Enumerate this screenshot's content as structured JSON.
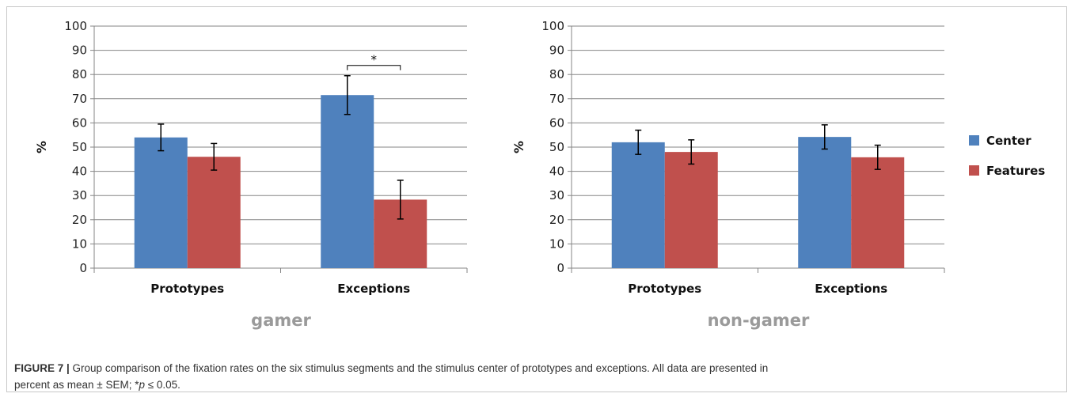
{
  "chart_data": [
    {
      "type": "bar",
      "panel_label": "gamer",
      "ylabel": "%",
      "ylim": [
        0,
        100
      ],
      "yticks": [
        0,
        10,
        20,
        30,
        40,
        50,
        60,
        70,
        80,
        90,
        100
      ],
      "categories": [
        "Prototypes",
        "Exceptions"
      ],
      "series": [
        {
          "name": "Center",
          "color": "#4f81bd",
          "values": [
            54,
            71.5
          ],
          "errors": [
            5.5,
            8
          ]
        },
        {
          "name": "Features",
          "color": "#c0504d",
          "values": [
            46,
            28.3
          ],
          "errors": [
            5.5,
            8
          ]
        }
      ],
      "annotations": [
        {
          "text": "*",
          "category": "Exceptions"
        }
      ]
    },
    {
      "type": "bar",
      "panel_label": "non-gamer",
      "ylabel": "%",
      "ylim": [
        0,
        100
      ],
      "yticks": [
        0,
        10,
        20,
        30,
        40,
        50,
        60,
        70,
        80,
        90,
        100
      ],
      "categories": [
        "Prototypes",
        "Exceptions"
      ],
      "series": [
        {
          "name": "Center",
          "color": "#4f81bd",
          "values": [
            52,
            54.2
          ],
          "errors": [
            5,
            5
          ]
        },
        {
          "name": "Features",
          "color": "#c0504d",
          "values": [
            48,
            45.8
          ],
          "errors": [
            5,
            5
          ]
        }
      ]
    }
  ],
  "legend": [
    {
      "name": "Center",
      "color": "#4f81bd"
    },
    {
      "name": "Features",
      "color": "#c0504d"
    }
  ],
  "caption": {
    "head": "FIGURE 7 |",
    "text_line1": " Group comparison of the fixation rates on the six stimulus segments and the stimulus center of prototypes and exceptions. All data are presented in",
    "text_line2_a": "percent as mean ± SEM; *",
    "text_line2_p": "p",
    "text_line2_b": " ≤ 0.05."
  }
}
